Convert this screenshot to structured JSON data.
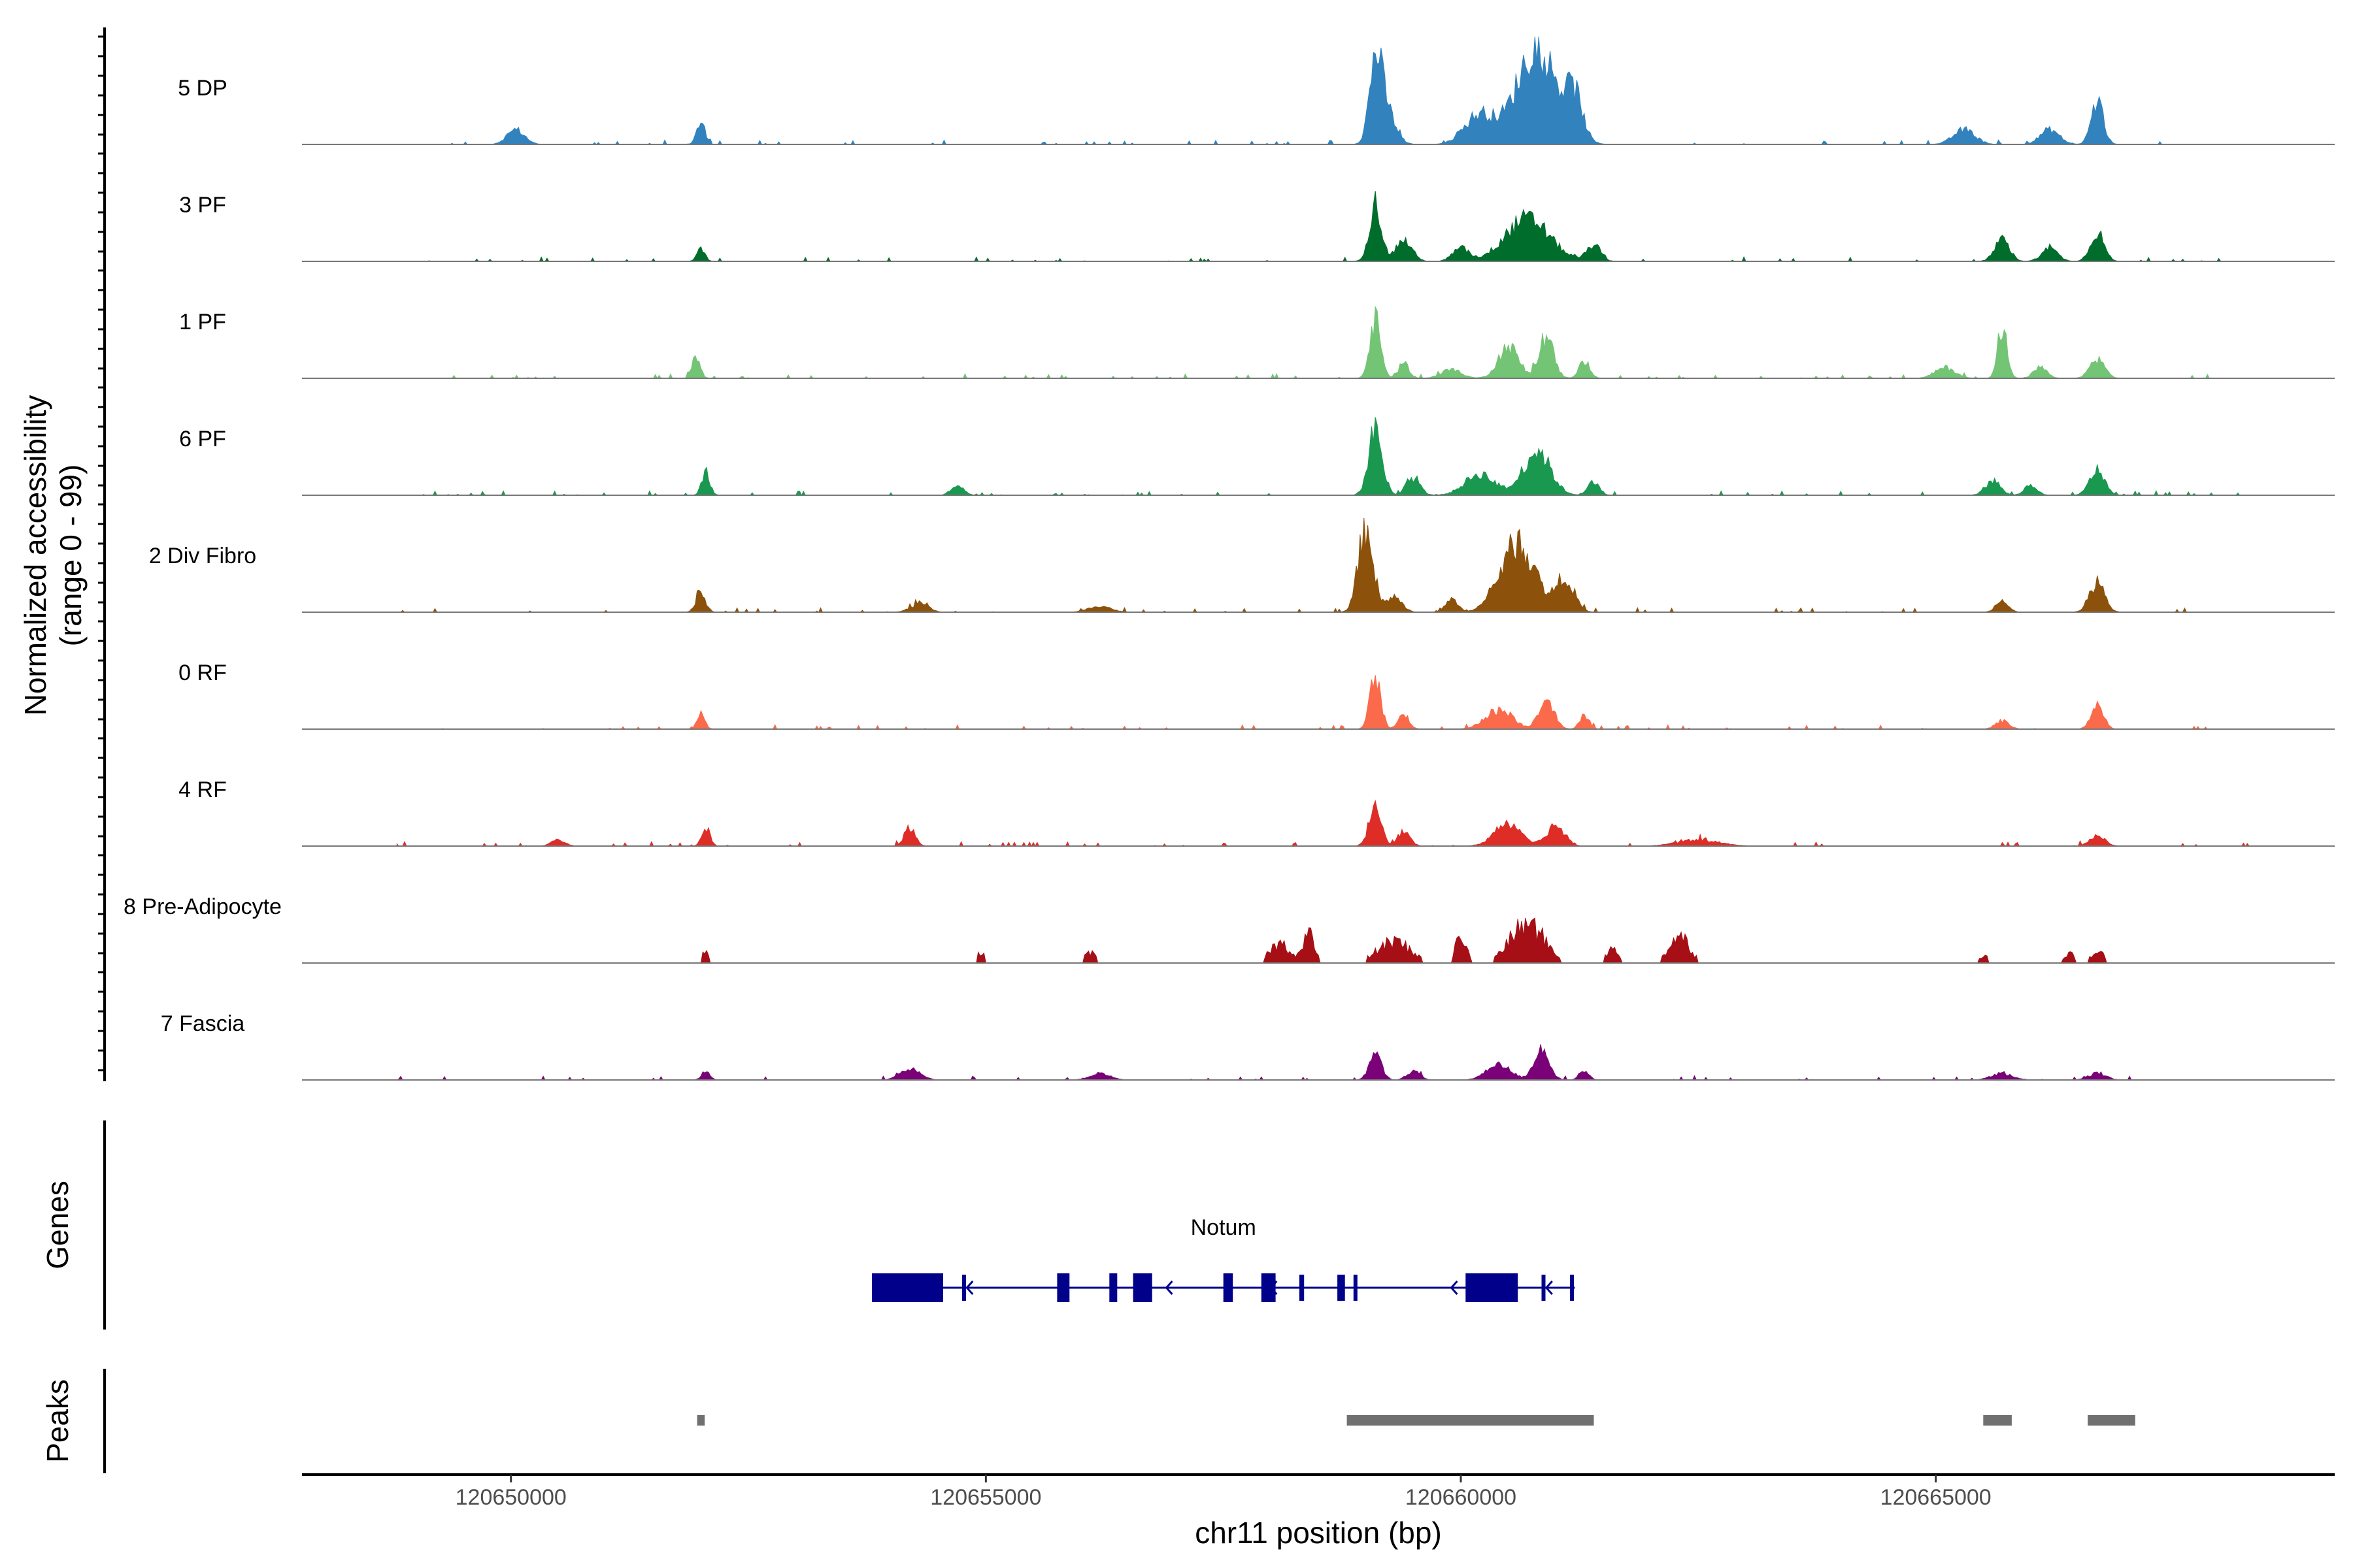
{
  "chart_data": {
    "type": "area",
    "title": "",
    "y_axis_label_line1": "Normalized accessibility",
    "y_axis_label_line2": "(range 0 - 99)",
    "x_axis_label": "chr11 position (bp)",
    "xlim": [
      120647800,
      120669200
    ],
    "x_ticks": [
      120650000,
      120655000,
      120660000,
      120665000
    ],
    "x_tick_labels": [
      "120650000",
      "120655000",
      "120660000",
      "120665000"
    ],
    "ylim": [
      0,
      99
    ],
    "tracks": [
      {
        "name": "5 DP",
        "color": "#3182bd",
        "data_start": 120648800,
        "data_end": 120668000,
        "peaks": [
          [
            120650050,
            14,
            130
          ],
          [
            120652000,
            22,
            60
          ],
          [
            120659100,
            66,
            90
          ],
          [
            120659200,
            35,
            140
          ],
          [
            120660200,
            28,
            220
          ],
          [
            120660800,
            92,
            300
          ],
          [
            120661200,
            38,
            120
          ],
          [
            120665300,
            14,
            160
          ],
          [
            120666200,
            14,
            140
          ],
          [
            120666700,
            40,
            90
          ]
        ]
      },
      {
        "name": "3 PF",
        "color": "#006d2c",
        "data_start": 120648800,
        "data_end": 120668000,
        "peaks": [
          [
            120652000,
            12,
            60
          ],
          [
            120659100,
            55,
            90
          ],
          [
            120659400,
            20,
            120
          ],
          [
            120660000,
            12,
            120
          ],
          [
            120660700,
            40,
            330
          ],
          [
            120661400,
            15,
            100
          ],
          [
            120665700,
            20,
            110
          ],
          [
            120666200,
            12,
            120
          ],
          [
            120666700,
            28,
            100
          ]
        ]
      },
      {
        "name": "1 PF",
        "color": "#74c476",
        "data_start": 120649200,
        "data_end": 120668000,
        "peaks": [
          [
            120651950,
            20,
            60
          ],
          [
            120659100,
            55,
            80
          ],
          [
            120659400,
            14,
            80
          ],
          [
            120659900,
            8,
            150
          ],
          [
            120660500,
            30,
            150
          ],
          [
            120660900,
            38,
            110
          ],
          [
            120661300,
            16,
            80
          ],
          [
            120665100,
            10,
            150
          ],
          [
            120665700,
            48,
            70
          ],
          [
            120666100,
            10,
            100
          ],
          [
            120666700,
            18,
            110
          ]
        ]
      },
      {
        "name": "6 PF",
        "color": "#1a9850",
        "data_start": 120649000,
        "data_end": 120668300,
        "peaks": [
          [
            120652050,
            22,
            60
          ],
          [
            120654700,
            10,
            90
          ],
          [
            120659100,
            62,
            100
          ],
          [
            120659500,
            16,
            100
          ],
          [
            120660200,
            20,
            220
          ],
          [
            120660800,
            42,
            200
          ],
          [
            120661400,
            14,
            80
          ],
          [
            120665600,
            14,
            110
          ],
          [
            120666000,
            10,
            90
          ],
          [
            120666700,
            24,
            110
          ]
        ]
      },
      {
        "name": "2 Div Fibro",
        "color": "#8c510a",
        "data_start": 120648800,
        "data_end": 120668200,
        "peaks": [
          [
            120652000,
            18,
            70
          ],
          [
            120654300,
            8,
            130
          ],
          [
            120656200,
            6,
            160
          ],
          [
            120659000,
            80,
            110
          ],
          [
            120659300,
            15,
            110
          ],
          [
            120659900,
            12,
            90
          ],
          [
            120660600,
            65,
            260
          ],
          [
            120661100,
            32,
            130
          ],
          [
            120665700,
            12,
            90
          ],
          [
            120666700,
            28,
            110
          ]
        ]
      },
      {
        "name": "0 RF",
        "color": "#fb6a4a",
        "data_start": 120648800,
        "data_end": 120668200,
        "peaks": [
          [
            120652000,
            14,
            60
          ],
          [
            120659100,
            50,
            80
          ],
          [
            120659400,
            14,
            80
          ],
          [
            120660400,
            18,
            200
          ],
          [
            120660900,
            30,
            110
          ],
          [
            120661300,
            14,
            70
          ],
          [
            120665700,
            8,
            100
          ],
          [
            120666700,
            24,
            90
          ]
        ]
      },
      {
        "name": "4 RF",
        "color": "#de2d26",
        "data_start": 120648800,
        "data_end": 120668300,
        "peaks": [
          [
            120650500,
            6,
            100
          ],
          [
            120652050,
            18,
            60
          ],
          [
            120654200,
            18,
            80
          ],
          [
            120659100,
            40,
            90
          ],
          [
            120659400,
            14,
            90
          ],
          [
            120660500,
            22,
            200
          ],
          [
            120661000,
            20,
            130
          ],
          [
            120662500,
            6,
            300
          ],
          [
            120666700,
            10,
            110
          ]
        ]
      },
      {
        "name": "8 Pre-Adipocyte",
        "color": "#a50f15",
        "data_start": 120652000,
        "data_end": 120668200,
        "peaks": [
          [
            120652050,
            12,
            60
          ],
          [
            120654950,
            12,
            50
          ],
          [
            120656100,
            10,
            90
          ],
          [
            120658100,
            20,
            160
          ],
          [
            120658400,
            30,
            80
          ],
          [
            120659300,
            22,
            250
          ],
          [
            120660000,
            28,
            80
          ],
          [
            120660700,
            40,
            260
          ],
          [
            120661600,
            14,
            100
          ],
          [
            120662300,
            28,
            150
          ],
          [
            120665500,
            8,
            80
          ],
          [
            120666400,
            10,
            90
          ],
          [
            120666700,
            14,
            90
          ]
        ]
      },
      {
        "name": "7 Fascia",
        "color": "#7a0177",
        "data_start": 120648800,
        "data_end": 120668300,
        "peaks": [
          [
            120652050,
            8,
            60
          ],
          [
            120654200,
            10,
            150
          ],
          [
            120656200,
            6,
            150
          ],
          [
            120659100,
            24,
            90
          ],
          [
            120659500,
            8,
            100
          ],
          [
            120660400,
            14,
            180
          ],
          [
            120660850,
            30,
            110
          ],
          [
            120661300,
            8,
            70
          ],
          [
            120665700,
            6,
            160
          ],
          [
            120666700,
            6,
            130
          ]
        ]
      }
    ],
    "genes_track": {
      "label": "Genes",
      "gene": {
        "name": "Notum",
        "start": 120653800,
        "end": 120661200,
        "strand": "-",
        "color": "#00008b",
        "exons": [
          [
            120653800,
            120654550,
            "thick"
          ],
          [
            120654750,
            120654780,
            "thin"
          ],
          [
            120655750,
            120655880,
            "thick"
          ],
          [
            120656300,
            120656380,
            "thick"
          ],
          [
            120656550,
            120656750,
            "thick"
          ],
          [
            120657500,
            120657600,
            "thick"
          ],
          [
            120657900,
            120658050,
            "thick"
          ],
          [
            120658300,
            120658350,
            "thin"
          ],
          [
            120658700,
            120658780,
            "thin"
          ],
          [
            120658870,
            120658900,
            "thin"
          ],
          [
            120660050,
            120660600,
            "thick"
          ],
          [
            120660850,
            120660880,
            "thin"
          ],
          [
            120661150,
            120661180,
            "thin"
          ]
        ],
        "direction_arrows": [
          120654800,
          120656900,
          120658000,
          120659900,
          120660900
        ]
      }
    },
    "peaks_track": {
      "label": "Peaks",
      "color": "#707070",
      "regions": [
        [
          120651960,
          120652040
        ],
        [
          120658800,
          120661400
        ],
        [
          120665500,
          120665800
        ],
        [
          120666600,
          120667100
        ]
      ]
    }
  }
}
